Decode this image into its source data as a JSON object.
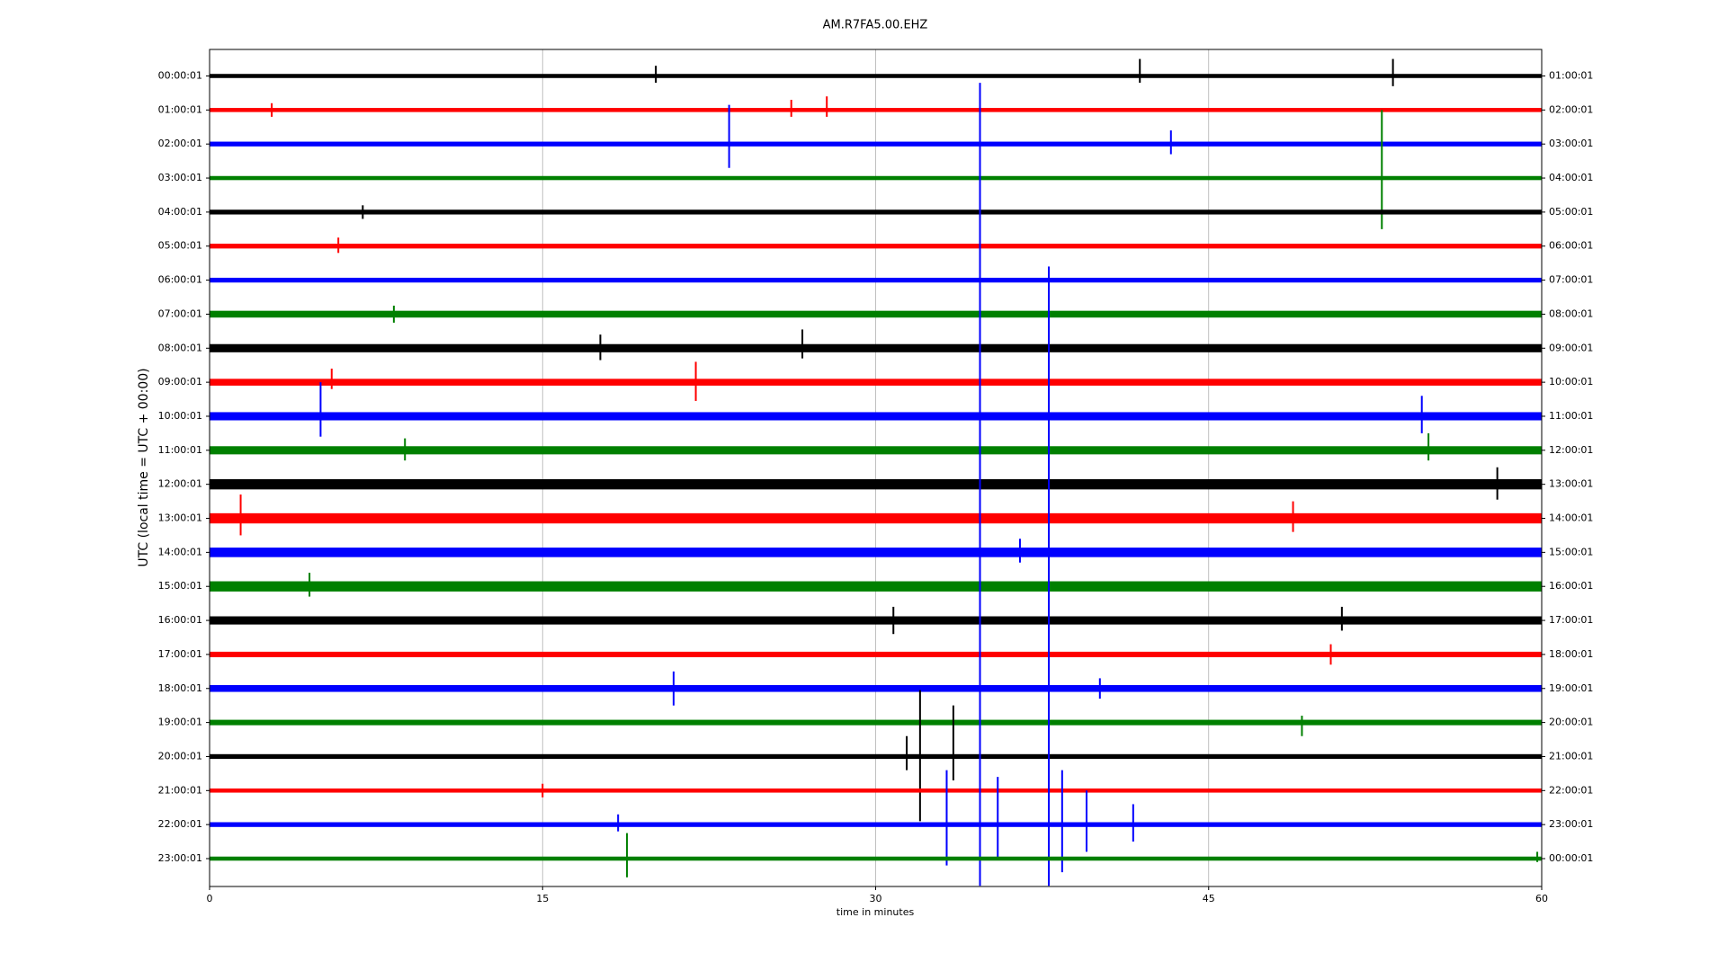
{
  "chart_data": {
    "type": "helicorder",
    "title": "AM.R7FA5.00.EHZ",
    "xlabel": "time in minutes",
    "ylabel": "UTC (local time = UTC + 00:00)",
    "xlim": [
      0,
      60
    ],
    "xticks": [
      0,
      15,
      30,
      45,
      60
    ],
    "grid": true,
    "rows": [
      {
        "label": "00:00:01",
        "right_label": "01:00:01",
        "color": "black",
        "noise": 0.06,
        "spikes": [
          {
            "x": 20.1,
            "up": 0.3,
            "down": 0.2
          },
          {
            "x": 41.9,
            "up": 0.5,
            "down": 0.2
          },
          {
            "x": 53.3,
            "up": 0.5,
            "down": 0.3
          }
        ]
      },
      {
        "label": "01:00:01",
        "right_label": "02:00:01",
        "color": "red",
        "noise": 0.06,
        "spikes": [
          {
            "x": 2.8,
            "up": 0.2,
            "down": 0.2
          },
          {
            "x": 26.2,
            "up": 0.3,
            "down": 0.2
          },
          {
            "x": 27.8,
            "up": 0.4,
            "down": 0.2
          }
        ]
      },
      {
        "label": "02:00:01",
        "right_label": "03:00:01",
        "color": "blue",
        "noise": 0.07,
        "spikes": [
          {
            "x": 23.4,
            "up": 1.15,
            "down": 0.7
          },
          {
            "x": 43.3,
            "up": 0.4,
            "down": 0.3
          }
        ]
      },
      {
        "label": "03:00:01",
        "right_label": "04:00:01",
        "color": "green",
        "noise": 0.06,
        "spikes": [
          {
            "x": 52.8,
            "up": 2,
            "down": 1.5
          }
        ]
      },
      {
        "label": "04:00:01",
        "right_label": "05:00:01",
        "color": "black",
        "noise": 0.07,
        "spikes": [
          {
            "x": 6.9,
            "up": 0.2,
            "down": 0.2
          }
        ]
      },
      {
        "label": "05:00:01",
        "right_label": "06:00:01",
        "color": "red",
        "noise": 0.07,
        "spikes": [
          {
            "x": 5.8,
            "up": 0.25,
            "down": 0.2
          }
        ]
      },
      {
        "label": "06:00:01",
        "right_label": "07:00:01",
        "color": "blue",
        "noise": 0.07,
        "spikes": [
          {
            "x": 37.8,
            "up": 0.4,
            "down": 0.2
          }
        ]
      },
      {
        "label": "07:00:01",
        "right_label": "08:00:01",
        "color": "green",
        "noise": 0.1,
        "spikes": [
          {
            "x": 8.3,
            "up": 0.25,
            "down": 0.25
          }
        ]
      },
      {
        "label": "08:00:01",
        "right_label": "09:00:01",
        "color": "black",
        "noise": 0.12,
        "spikes": [
          {
            "x": 17.6,
            "up": 0.4,
            "down": 0.35
          },
          {
            "x": 26.7,
            "up": 0.55,
            "down": 0.3
          }
        ]
      },
      {
        "label": "09:00:01",
        "right_label": "10:00:01",
        "color": "red",
        "noise": 0.1,
        "spikes": [
          {
            "x": 5.5,
            "up": 0.4,
            "down": 0.2
          },
          {
            "x": 21.9,
            "up": 0.6,
            "down": 0.55
          }
        ]
      },
      {
        "label": "10:00:01",
        "right_label": "11:00:01",
        "color": "blue",
        "noise": 0.12,
        "spikes": [
          {
            "x": 5,
            "up": 1,
            "down": 0.6
          },
          {
            "x": 54.6,
            "up": 0.6,
            "down": 0.5
          }
        ]
      },
      {
        "label": "11:00:01",
        "right_label": "12:00:01",
        "color": "green",
        "noise": 0.12,
        "spikes": [
          {
            "x": 8.8,
            "up": 0.35,
            "down": 0.3
          },
          {
            "x": 54.9,
            "up": 0.5,
            "down": 0.3
          }
        ]
      },
      {
        "label": "12:00:01",
        "right_label": "13:00:01",
        "color": "black",
        "noise": 0.15,
        "spikes": [
          {
            "x": 58,
            "up": 0.5,
            "down": 0.45
          }
        ]
      },
      {
        "label": "13:00:01",
        "right_label": "14:00:01",
        "color": "red",
        "noise": 0.15,
        "spikes": [
          {
            "x": 1.4,
            "up": 0.7,
            "down": 0.5
          },
          {
            "x": 48.8,
            "up": 0.5,
            "down": 0.4
          }
        ]
      },
      {
        "label": "14:00:01",
        "right_label": "15:00:01",
        "color": "blue",
        "noise": 0.14,
        "spikes": [
          {
            "x": 36.5,
            "up": 0.4,
            "down": 0.3
          }
        ]
      },
      {
        "label": "15:00:01",
        "right_label": "16:00:01",
        "color": "green",
        "noise": 0.15,
        "spikes": [
          {
            "x": 4.5,
            "up": 0.4,
            "down": 0.3
          }
        ]
      },
      {
        "label": "16:00:01",
        "right_label": "17:00:01",
        "color": "black",
        "noise": 0.12,
        "spikes": [
          {
            "x": 30.8,
            "up": 0.4,
            "down": 0.4
          },
          {
            "x": 51,
            "up": 0.4,
            "down": 0.3
          }
        ]
      },
      {
        "label": "17:00:01",
        "right_label": "18:00:01",
        "color": "red",
        "noise": 0.08,
        "spikes": [
          {
            "x": 50.5,
            "up": 0.3,
            "down": 0.3
          }
        ]
      },
      {
        "label": "18:00:01",
        "right_label": "19:00:01",
        "color": "blue",
        "noise": 0.1,
        "spikes": [
          {
            "x": 20.9,
            "up": 0.5,
            "down": 0.5
          },
          {
            "x": 40.1,
            "up": 0.3,
            "down": 0.3
          }
        ]
      },
      {
        "label": "19:00:01",
        "right_label": "20:00:01",
        "color": "green",
        "noise": 0.08,
        "spikes": [
          {
            "x": 49.2,
            "up": 0.2,
            "down": 0.4
          }
        ]
      },
      {
        "label": "20:00:01",
        "right_label": "21:00:01",
        "color": "black",
        "noise": 0.07,
        "spikes": [
          {
            "x": 32,
            "up": 1.95,
            "down": 1.9
          },
          {
            "x": 33.5,
            "up": 1.5,
            "down": 0.7
          },
          {
            "x": 31.4,
            "up": 0.6,
            "down": 0.4
          }
        ]
      },
      {
        "label": "21:00:01",
        "right_label": "22:00:01",
        "color": "red",
        "noise": 0.06,
        "spikes": [
          {
            "x": 15,
            "up": 0.2,
            "down": 0.2
          }
        ]
      },
      {
        "label": "22:00:01",
        "right_label": "23:00:01",
        "color": "blue",
        "noise": 0.07,
        "spikes": [
          {
            "x": 34.7,
            "up": 21.8,
            "down": 1.8
          },
          {
            "x": 37.8,
            "up": 16.4,
            "down": 1.8
          },
          {
            "x": 18.4,
            "up": 0.3,
            "down": 0.2
          },
          {
            "x": 33.2,
            "up": 1.6,
            "down": 1.2
          },
          {
            "x": 35.5,
            "up": 1.4,
            "down": 1
          },
          {
            "x": 38.4,
            "up": 1.6,
            "down": 1.4
          },
          {
            "x": 39.5,
            "up": 1,
            "down": 0.8
          },
          {
            "x": 41.6,
            "up": 0.6,
            "down": 0.5
          }
        ]
      },
      {
        "label": "23:00:01",
        "right_label": "00:00:01",
        "color": "green",
        "noise": 0.06,
        "spikes": [
          {
            "x": 18.8,
            "up": 0.75,
            "down": 0.55
          },
          {
            "x": 59.8,
            "up": 0.2,
            "down": 0.1
          }
        ]
      }
    ]
  }
}
